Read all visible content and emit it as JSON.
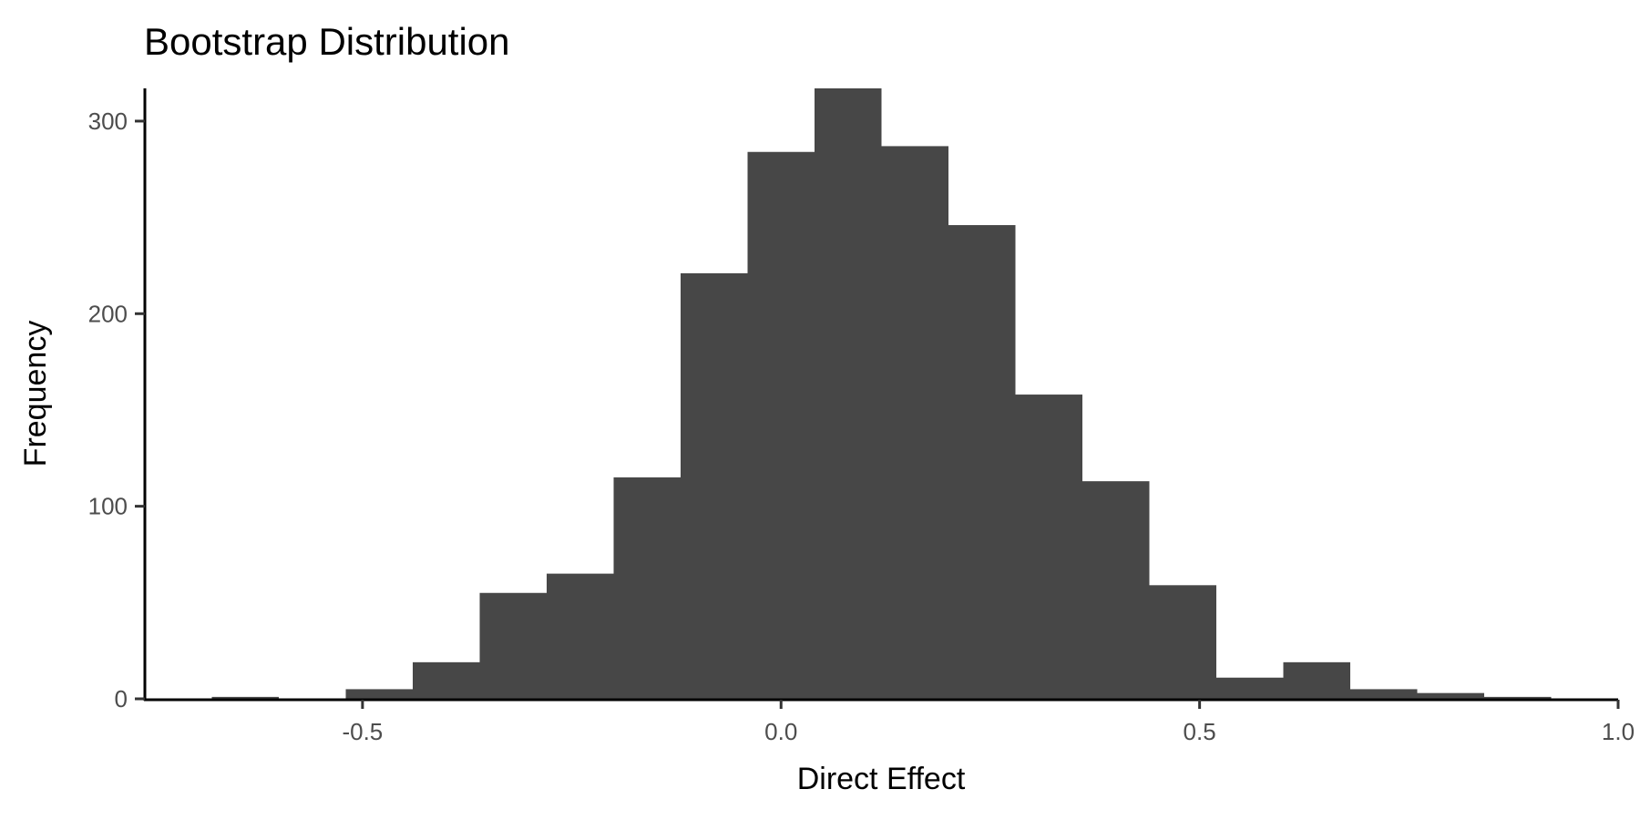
{
  "chart_data": {
    "type": "bar",
    "subtype": "histogram",
    "title": "Bootstrap Distribution",
    "xlabel": "Direct Effect",
    "ylabel": "Frequency",
    "bin_width": 0.08,
    "bin_edges": [
      -0.68,
      -0.6,
      -0.52,
      -0.44,
      -0.36,
      -0.28,
      -0.2,
      -0.12,
      -0.04,
      0.04,
      0.12,
      0.2,
      0.28,
      0.36,
      0.44,
      0.52,
      0.6,
      0.68,
      0.76,
      0.84,
      0.92
    ],
    "values": [
      1,
      0,
      5,
      19,
      55,
      65,
      115,
      221,
      284,
      317,
      287,
      246,
      158,
      113,
      59,
      11,
      19,
      5,
      3,
      1
    ],
    "xlim": [
      -0.76,
      1.0
    ],
    "ylim": [
      0,
      317
    ],
    "x_ticks": [
      -0.5,
      0.0,
      0.5,
      1.0
    ],
    "x_tick_labels": [
      "-0.5",
      "0.0",
      "0.5",
      "1.0"
    ],
    "y_ticks": [
      0,
      100,
      200,
      300
    ],
    "y_tick_labels": [
      "0",
      "100",
      "200",
      "300"
    ],
    "grid": false,
    "bar_color": "#474747",
    "axis_color": "#000000"
  }
}
